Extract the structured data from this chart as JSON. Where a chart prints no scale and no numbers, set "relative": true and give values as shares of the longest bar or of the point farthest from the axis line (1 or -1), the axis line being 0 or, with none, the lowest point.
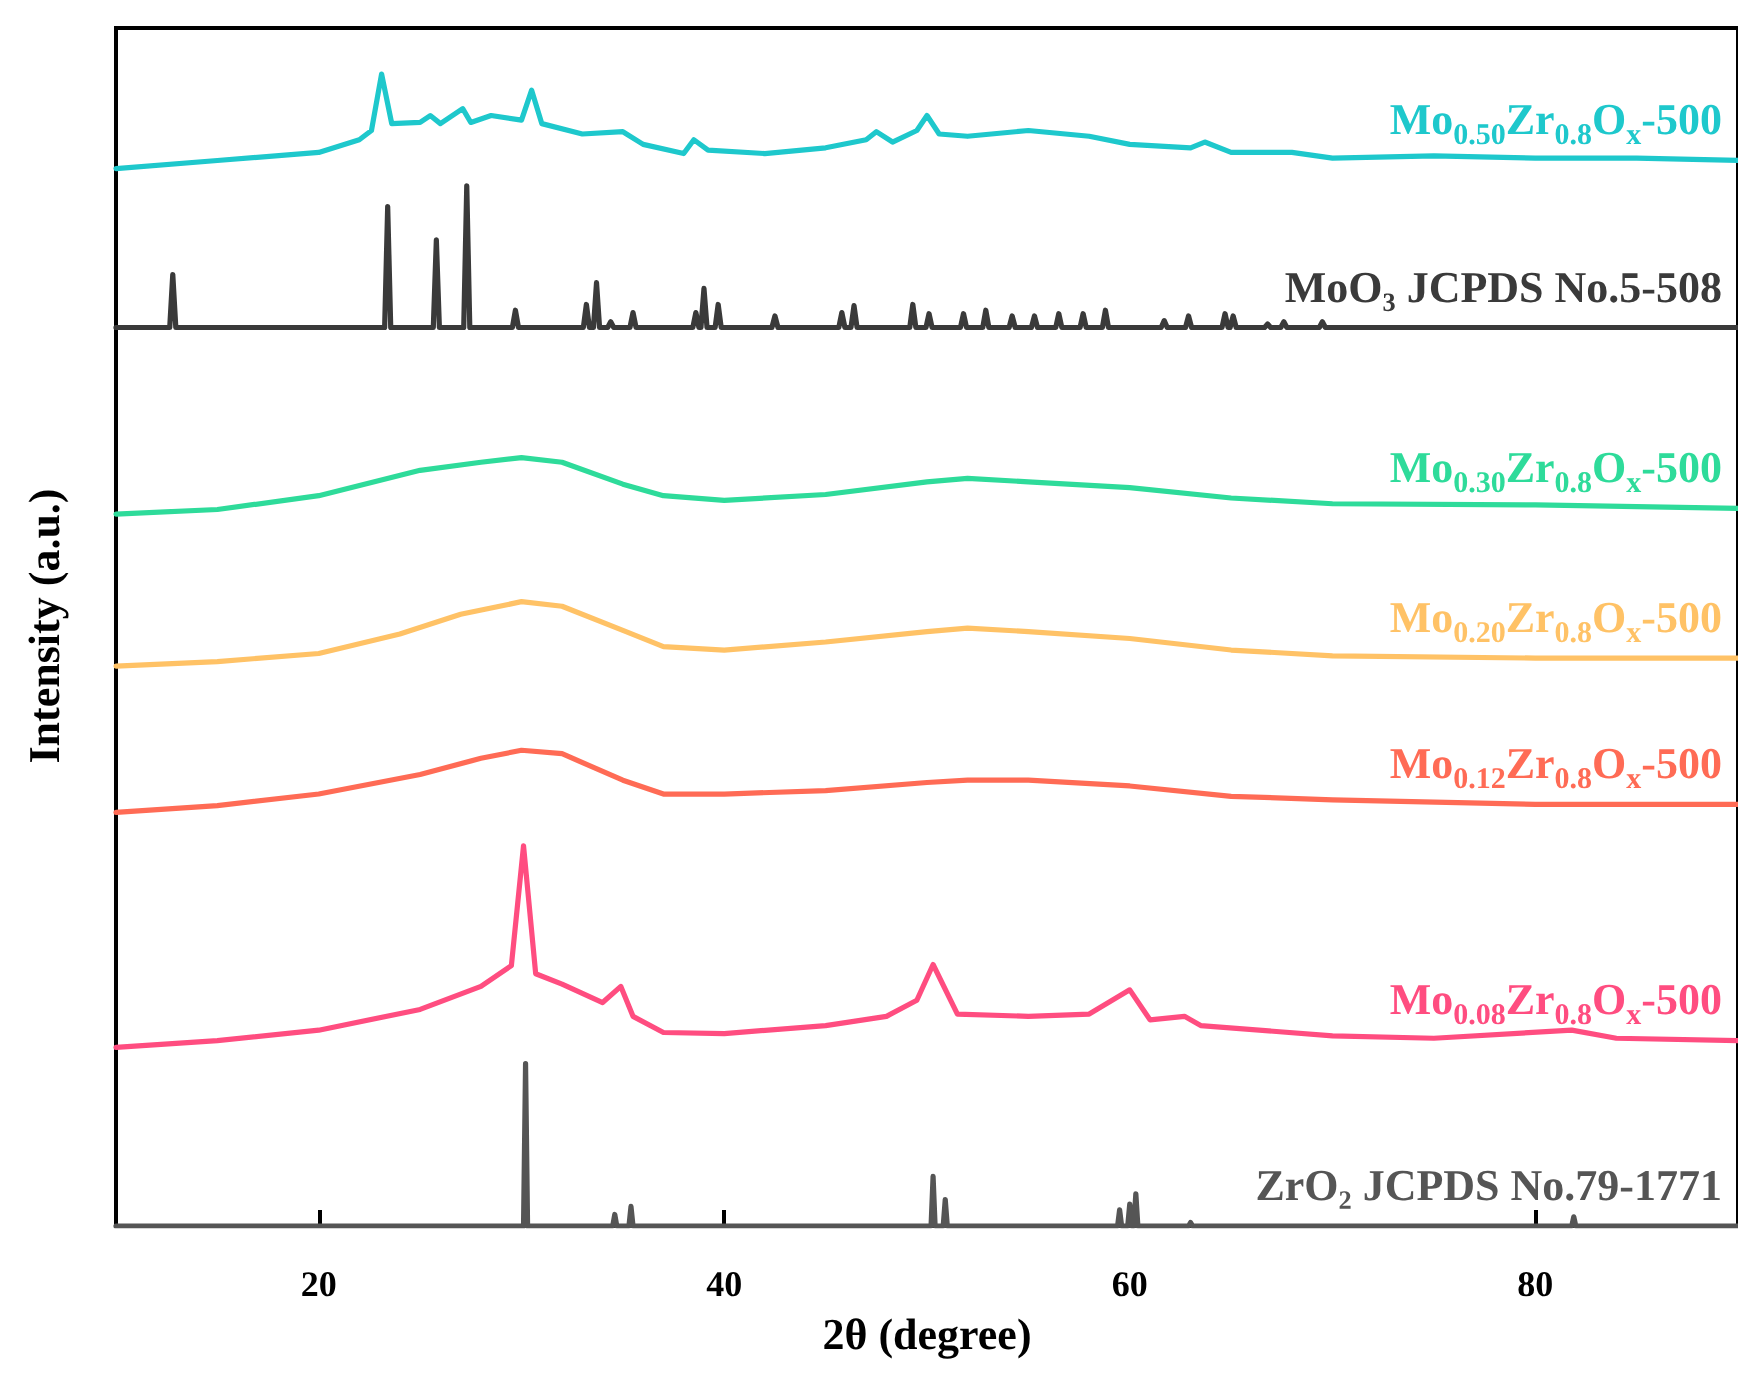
{
  "chart_data": {
    "type": "line",
    "relative": true,
    "xlabel": "2θ (degree)",
    "ylabel": "Intensity (a.u.)",
    "xlim": [
      10,
      90
    ],
    "xticks": [
      20,
      40,
      60,
      80
    ],
    "tick_labels": "x",
    "marker": "none",
    "line_style": "solid",
    "series": [
      {
        "name": "Mo$_{0.50}$Zr$_{0.8}$O$_{x}$-500",
        "color": "#1ec8cc",
        "x": [
          10,
          15,
          20,
          22,
          22.6,
          23.1,
          23.6,
          25,
          25.5,
          26,
          27.1,
          27.5,
          28.5,
          30,
          30.5,
          31,
          33,
          35,
          36,
          38,
          38.5,
          39.2,
          42,
          45,
          47,
          47.5,
          48.3,
          49.5,
          50,
          50.6,
          52,
          55,
          58,
          60,
          63,
          63.7,
          65,
          68,
          70,
          75,
          80,
          85,
          90
        ],
        "values": [
          0.918,
          0.925,
          0.932,
          0.943,
          0.951,
          1.0,
          0.957,
          0.958,
          0.964,
          0.957,
          0.97,
          0.958,
          0.964,
          0.96,
          0.986,
          0.957,
          0.948,
          0.95,
          0.939,
          0.931,
          0.943,
          0.934,
          0.931,
          0.936,
          0.943,
          0.95,
          0.941,
          0.951,
          0.964,
          0.948,
          0.946,
          0.951,
          0.946,
          0.939,
          0.936,
          0.941,
          0.932,
          0.932,
          0.927,
          0.929,
          0.927,
          0.927,
          0.925
        ]
      },
      {
        "name": "MoO₃ JCPDS No.5-508",
        "color": "#3a3a3a",
        "x": [
          10,
          12.65,
          12.8,
          12.95,
          23.25,
          23.4,
          23.55,
          25.65,
          25.8,
          25.95,
          27.15,
          27.3,
          27.45,
          29.55,
          29.7,
          29.85,
          33.05,
          33.2,
          33.35,
          33.55,
          33.7,
          33.85,
          34.25,
          34.4,
          34.55,
          35.35,
          35.5,
          35.65,
          38.45,
          38.6,
          38.75,
          38.85,
          39.0,
          39.15,
          39.55,
          39.7,
          39.85,
          42.35,
          42.5,
          42.65,
          45.65,
          45.8,
          45.95,
          46.25,
          46.4,
          46.55,
          49.15,
          49.3,
          49.45,
          49.95,
          50.1,
          50.25,
          51.65,
          51.8,
          51.95,
          52.75,
          52.9,
          53.05,
          54.05,
          54.2,
          54.35,
          55.15,
          55.3,
          55.45,
          56.35,
          56.5,
          56.65,
          57.55,
          57.7,
          57.85,
          58.65,
          58.8,
          58.95,
          61.55,
          61.7,
          61.85,
          62.75,
          62.9,
          63.05,
          64.55,
          64.7,
          64.85,
          64.95,
          65.1,
          65.25,
          66.65,
          66.8,
          66.95,
          67.45,
          67.6,
          67.75,
          69.35,
          69.5,
          69.65,
          90
        ],
        "values": [
          0.78,
          0.78,
          0.826,
          0.78,
          0.78,
          0.885,
          0.78,
          0.78,
          0.856,
          0.78,
          0.78,
          0.903,
          0.78,
          0.78,
          0.795,
          0.78,
          0.78,
          0.8,
          0.78,
          0.78,
          0.819,
          0.78,
          0.78,
          0.785,
          0.78,
          0.78,
          0.793,
          0.78,
          0.78,
          0.793,
          0.78,
          0.78,
          0.814,
          0.78,
          0.78,
          0.8,
          0.78,
          0.78,
          0.79,
          0.78,
          0.78,
          0.793,
          0.78,
          0.78,
          0.799,
          0.78,
          0.78,
          0.8,
          0.78,
          0.78,
          0.792,
          0.78,
          0.78,
          0.792,
          0.78,
          0.78,
          0.795,
          0.78,
          0.78,
          0.79,
          0.78,
          0.78,
          0.79,
          0.78,
          0.78,
          0.792,
          0.78,
          0.78,
          0.792,
          0.78,
          0.78,
          0.795,
          0.78,
          0.78,
          0.786,
          0.78,
          0.78,
          0.79,
          0.78,
          0.78,
          0.792,
          0.78,
          0.78,
          0.79,
          0.78,
          0.78,
          0.783,
          0.78,
          0.78,
          0.785,
          0.78,
          0.78,
          0.785,
          0.78,
          0.78
        ]
      },
      {
        "name": "Mo$_{0.30}$Zr$_{0.8}$O$_{x}$-500",
        "color": "#2edb9a",
        "x": [
          10,
          15,
          20,
          25,
          28,
          30,
          32,
          35,
          37,
          40,
          45,
          50,
          52,
          55,
          60,
          65,
          70,
          80,
          90
        ],
        "values": [
          0.618,
          0.622,
          0.634,
          0.656,
          0.663,
          0.667,
          0.663,
          0.644,
          0.634,
          0.63,
          0.635,
          0.646,
          0.649,
          0.646,
          0.641,
          0.632,
          0.627,
          0.626,
          0.623
        ]
      },
      {
        "name": "Mo$_{0.20}$Zr$_{0.8}$O$_{x}$-500",
        "color": "#ffc266",
        "x": [
          10,
          15,
          20,
          24,
          27,
          30,
          32,
          35,
          37,
          40,
          45,
          50,
          52,
          55,
          60,
          65,
          70,
          80,
          90
        ],
        "values": [
          0.486,
          0.49,
          0.497,
          0.514,
          0.531,
          0.542,
          0.538,
          0.517,
          0.503,
          0.5,
          0.507,
          0.516,
          0.519,
          0.516,
          0.51,
          0.5,
          0.495,
          0.493,
          0.493
        ]
      },
      {
        "name": "Mo$_{0.12}$Zr$_{0.8}$O$_{x}$-500",
        "color": "#ff6b55",
        "x": [
          10,
          15,
          20,
          25,
          28,
          30,
          32,
          35,
          37,
          40,
          45,
          50,
          52,
          55,
          60,
          65,
          70,
          80,
          90
        ],
        "values": [
          0.359,
          0.365,
          0.375,
          0.392,
          0.406,
          0.413,
          0.41,
          0.387,
          0.375,
          0.375,
          0.378,
          0.385,
          0.387,
          0.387,
          0.382,
          0.373,
          0.37,
          0.366,
          0.366
        ]
      },
      {
        "name": "Mo$_{0.08}$Zr$_{0.8}$O$_{x}$-500",
        "color": "#ff4d80",
        "x": [
          10,
          15,
          20,
          25,
          28,
          29.5,
          30.1,
          30.7,
          32,
          34,
          34.9,
          35.5,
          37,
          40,
          45,
          48,
          49.5,
          50.3,
          51.5,
          55,
          58,
          60,
          61,
          62.7,
          63.5,
          70,
          75,
          81.8,
          84,
          90
        ],
        "values": [
          0.155,
          0.161,
          0.17,
          0.188,
          0.208,
          0.226,
          0.33,
          0.219,
          0.21,
          0.194,
          0.208,
          0.182,
          0.168,
          0.167,
          0.174,
          0.182,
          0.196,
          0.227,
          0.184,
          0.182,
          0.184,
          0.205,
          0.179,
          0.182,
          0.174,
          0.165,
          0.163,
          0.17,
          0.163,
          0.161
        ]
      },
      {
        "name": "ZrO₂ JCPDS No.79-1771",
        "color": "#555555",
        "x": [
          10,
          30.1,
          30.2,
          30.3,
          34.5,
          34.6,
          34.7,
          35.3,
          35.4,
          35.5,
          50.2,
          50.3,
          50.4,
          50.8,
          50.9,
          51.0,
          59.4,
          59.5,
          59.6,
          59.9,
          60.0,
          60.1,
          60.2,
          60.3,
          60.4,
          62.9,
          63.0,
          63.1,
          81.8,
          81.9,
          82.0,
          90
        ],
        "values": [
          0,
          0,
          0.141,
          0,
          0,
          0.01,
          0,
          0,
          0.017,
          0,
          0,
          0.043,
          0,
          0,
          0.023,
          0,
          0,
          0.014,
          0,
          0,
          0.019,
          0,
          0,
          0.028,
          0,
          0,
          0.003,
          0,
          0,
          0.008,
          0,
          0
        ]
      }
    ]
  }
}
